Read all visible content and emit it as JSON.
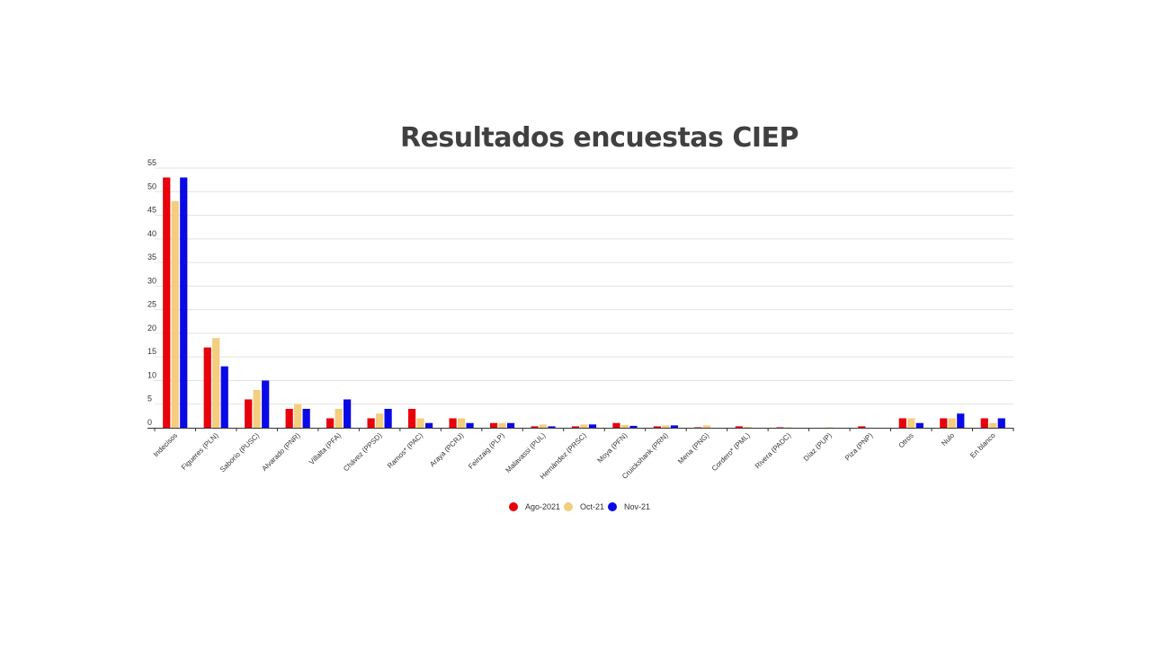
{
  "chart_data": {
    "type": "bar",
    "title": "Resultados encuestas CIEP",
    "xlabel": "",
    "ylabel": "",
    "ylim": [
      0,
      55
    ],
    "yticks": [
      0,
      5,
      10,
      15,
      20,
      25,
      30,
      35,
      40,
      45,
      50,
      55
    ],
    "grid": true,
    "legend_position": "bottom",
    "categories": [
      "Indecisos",
      "Figueres (PLN)",
      "Saborío (PUSC)",
      "Alvarado (PNR)",
      "Villalta (PFA)",
      "Chávez (PPSD)",
      "Ramos* (PAC)",
      "Araya (PCRJ)",
      "Feinzaig (PLP)",
      "Malavassi (PUL)",
      "Hernández (PRSC)",
      "Moya (PFN)",
      "Cruickshank (PRN)",
      "Mena (PNG)",
      "Cordero* (PML)",
      "Rivera (PADC)",
      "Díaz (PUP)",
      "Piza (PNP)",
      "Otros",
      "Nulo",
      "En blanco"
    ],
    "series": [
      {
        "name": "Ago-2021",
        "color": "#e8000b",
        "values": [
          53,
          17,
          6,
          4,
          2,
          2,
          4,
          2,
          1,
          0.3,
          0.3,
          1,
          0.3,
          0.1,
          0.3,
          0.1,
          0,
          0.3,
          2,
          2,
          2
        ]
      },
      {
        "name": "Oct-21",
        "color": "#f4cd7e",
        "values": [
          48,
          19,
          8,
          5,
          4,
          3,
          2,
          2,
          1,
          0.7,
          0.7,
          0.6,
          0.5,
          0.5,
          0.2,
          0.1,
          0.1,
          0,
          2,
          2,
          1
        ]
      },
      {
        "name": "Nov-21",
        "color": "#0a0ae6",
        "values": [
          53,
          13,
          10,
          4,
          6,
          4,
          1,
          1,
          1,
          0.3,
          0.7,
          0.4,
          0.5,
          0,
          0,
          0,
          0,
          0,
          1,
          3,
          2
        ]
      }
    ]
  }
}
